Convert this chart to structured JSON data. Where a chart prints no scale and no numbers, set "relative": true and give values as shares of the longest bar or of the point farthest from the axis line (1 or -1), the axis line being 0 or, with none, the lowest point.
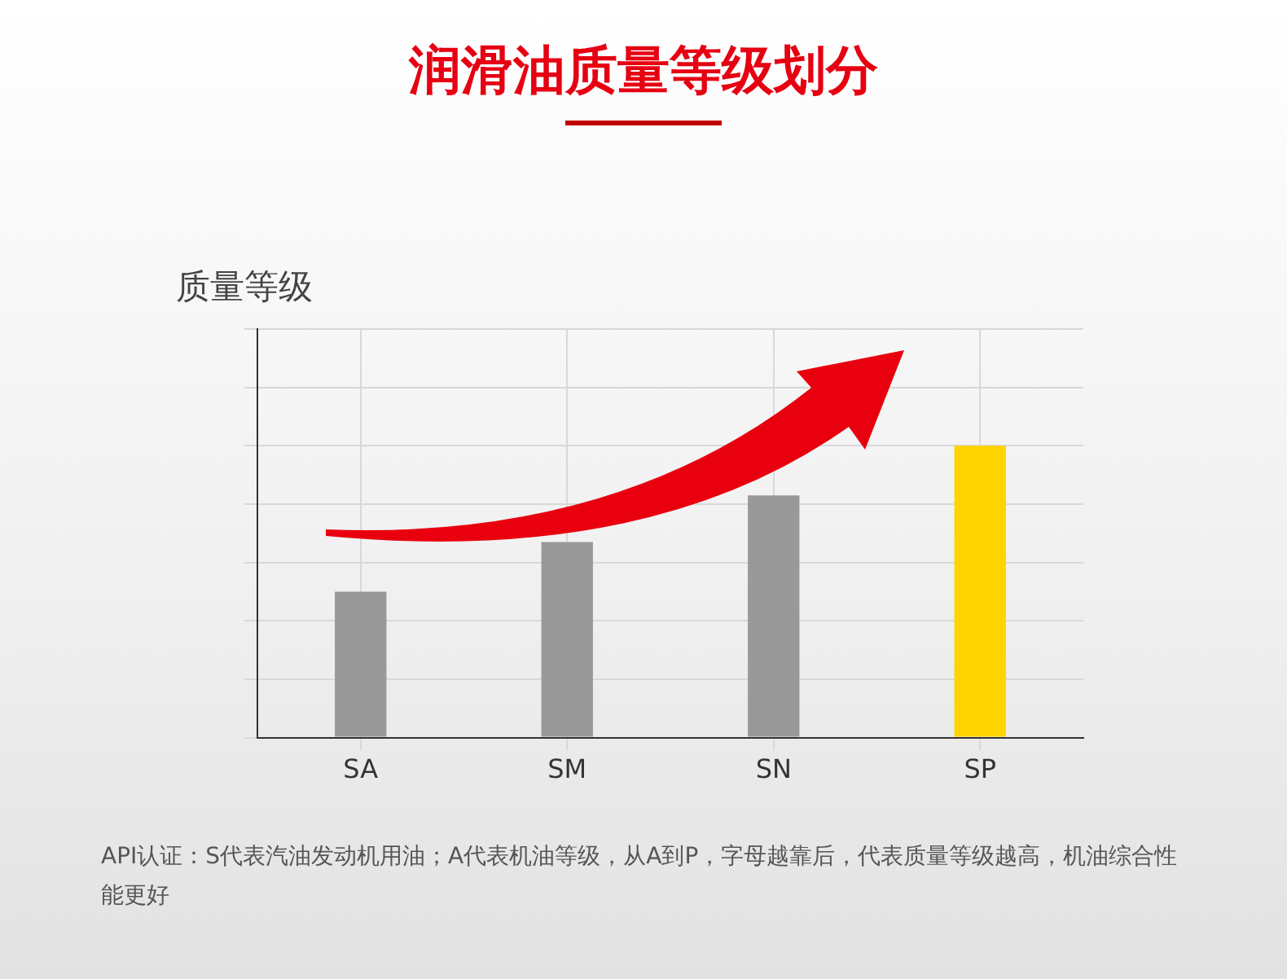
{
  "chart_data": {
    "type": "bar",
    "title": "润滑油质量等级划分",
    "ylabel": "质量等级",
    "categories": [
      "SA",
      "SM",
      "SN",
      "SP"
    ],
    "values": [
      0.5,
      0.67,
      0.83,
      1
    ],
    "colors": [
      "#999999",
      "#999999",
      "#999999",
      "#ffd400"
    ],
    "relative": true,
    "grid": true,
    "legend": false,
    "annotations": [
      "API认证：S代表汽油发动机用油；A代表机油等级，从A到P，字母越靠后，代表质量等级越高，机油综合性能更好"
    ]
  }
}
